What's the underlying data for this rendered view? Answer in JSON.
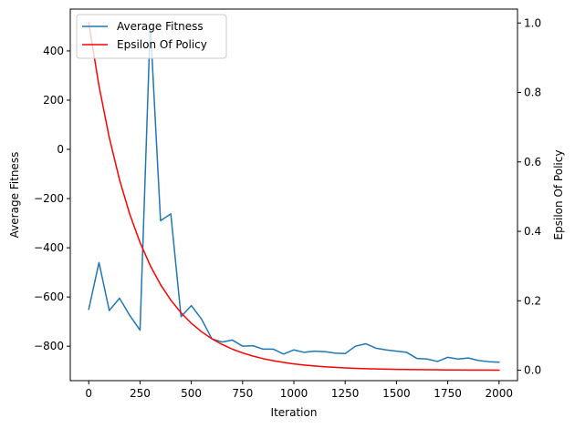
{
  "chart_data": {
    "type": "line",
    "xlabel": "Iteration",
    "ylabel_left": "Average Fitness",
    "ylabel_right": "Epsilon Of Policy",
    "xlim": [
      -90,
      2090
    ],
    "ylim_left": [
      -940,
      570
    ],
    "ylim_right": [
      -0.03,
      1.04
    ],
    "x_ticks": [
      0,
      250,
      500,
      750,
      1000,
      1250,
      1500,
      1750,
      2000
    ],
    "y_left_ticks": [
      -800,
      -600,
      -400,
      -200,
      0,
      200,
      400
    ],
    "y_right_ticks": [
      0.0,
      0.2,
      0.4,
      0.6,
      0.8,
      1.0
    ],
    "y_right_tick_labels": [
      "0.0",
      "0.2",
      "0.4",
      "0.6",
      "0.8",
      "1.0"
    ],
    "grid": false,
    "legend_position": "top-left",
    "x": [
      0,
      50,
      100,
      150,
      200,
      250,
      300,
      350,
      400,
      450,
      500,
      550,
      600,
      650,
      700,
      750,
      800,
      850,
      900,
      950,
      1000,
      1050,
      1100,
      1150,
      1200,
      1250,
      1300,
      1350,
      1400,
      1450,
      1500,
      1550,
      1600,
      1650,
      1700,
      1750,
      1800,
      1850,
      1900,
      1950,
      2000
    ],
    "series": [
      {
        "name": "Average Fitness",
        "axis": "left",
        "color": "#1f77b4",
        "values": [
          -650,
          -460,
          -655,
          -605,
          -675,
          -735,
          510,
          -290,
          -262,
          -680,
          -635,
          -690,
          -770,
          -783,
          -775,
          -800,
          -798,
          -812,
          -812,
          -832,
          -815,
          -825,
          -820,
          -822,
          -828,
          -830,
          -800,
          -790,
          -808,
          -815,
          -820,
          -825,
          -850,
          -852,
          -862,
          -845,
          -852,
          -848,
          -858,
          -863,
          -865
        ]
      },
      {
        "name": "Epsilon Of Policy",
        "axis": "right",
        "color": "#ff0000",
        "values": [
          1.0,
          0.8187,
          0.6703,
          0.5488,
          0.4493,
          0.3679,
          0.3012,
          0.2466,
          0.2019,
          0.1653,
          0.1353,
          0.1108,
          0.0907,
          0.0743,
          0.0608,
          0.0498,
          0.0408,
          0.0334,
          0.0273,
          0.0224,
          0.0183,
          0.015,
          0.0123,
          0.0101,
          0.0082,
          0.0067,
          0.0055,
          0.0045,
          0.0037,
          0.003,
          0.0025,
          0.002,
          0.0017,
          0.0014,
          0.0011,
          0.0009,
          0.0007,
          0.0006,
          0.0005,
          0.0004,
          0.0003
        ]
      }
    ]
  }
}
